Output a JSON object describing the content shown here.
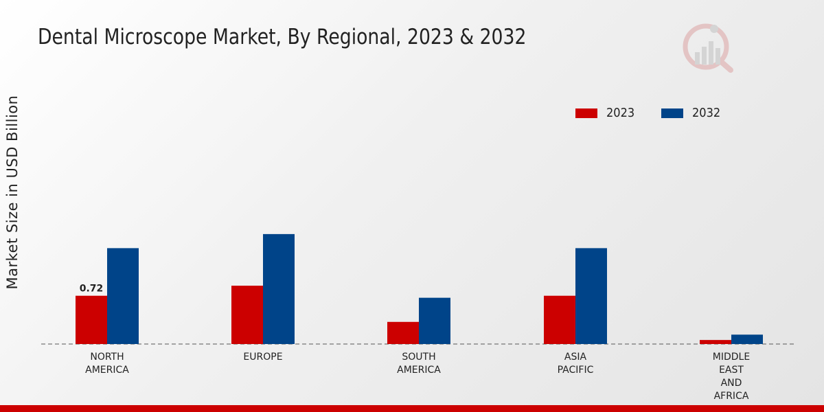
{
  "chart_data": {
    "type": "bar",
    "title": "Dental Microscope Market, By Regional, 2023 & 2032",
    "ylabel": "Market Size in USD Billion",
    "xlabel": "",
    "categories": [
      [
        "NORTH",
        "AMERICA"
      ],
      [
        "EUROPE"
      ],
      [
        "SOUTH",
        "AMERICA"
      ],
      [
        "ASIA",
        "PACIFIC"
      ],
      [
        "MIDDLE",
        "EAST",
        "AND",
        "AFRICA"
      ]
    ],
    "series": [
      {
        "name": "2023",
        "color": "#cc0000",
        "values": [
          0.72,
          0.87,
          0.33,
          0.72,
          0.06
        ]
      },
      {
        "name": "2032",
        "color": "#004489",
        "values": [
          1.43,
          1.64,
          0.69,
          1.43,
          0.14
        ]
      }
    ],
    "data_labels": [
      {
        "series": 0,
        "index": 0,
        "text": "0.72"
      }
    ],
    "ylim": [
      0,
      3.8
    ],
    "grid": false,
    "legend_position": "top-right"
  }
}
